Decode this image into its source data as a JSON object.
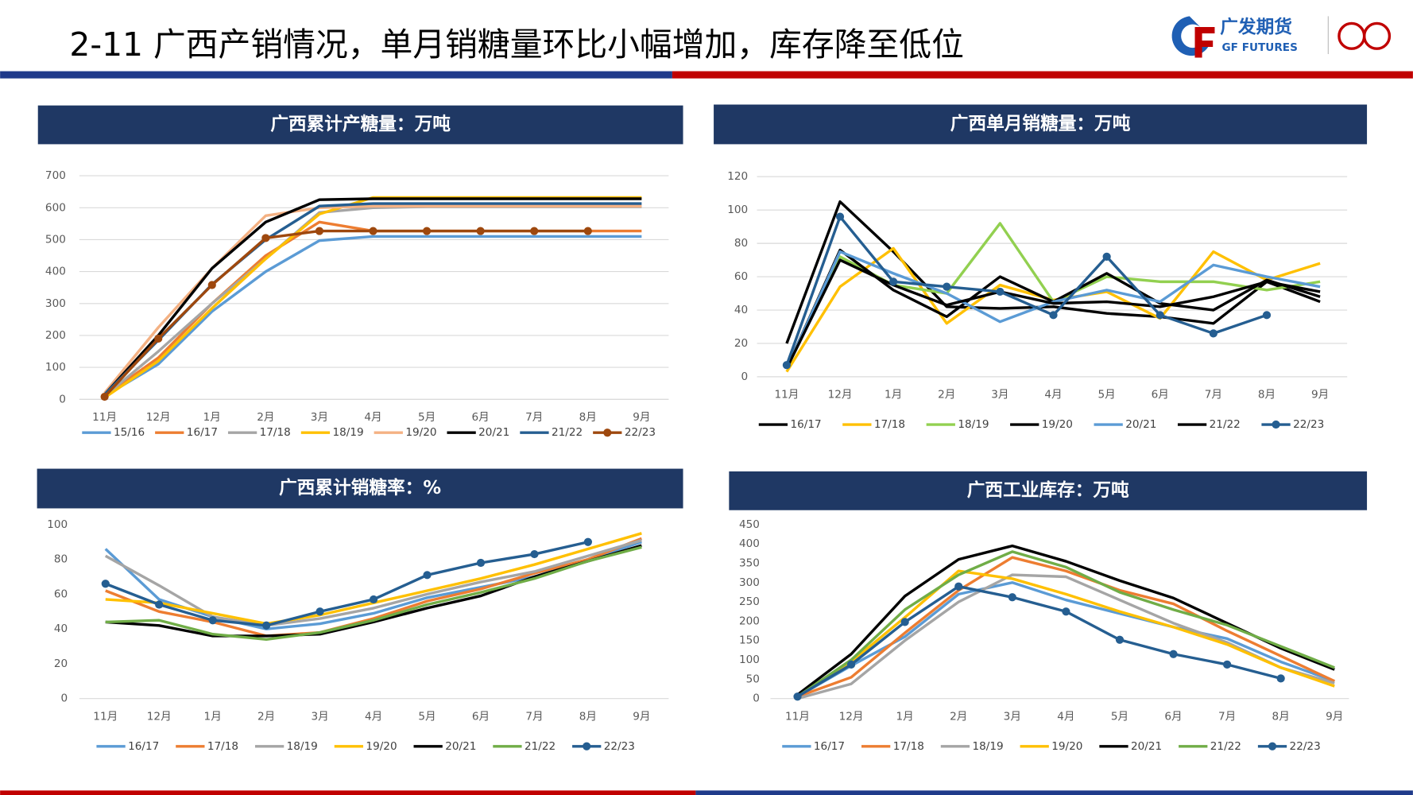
{
  "header": {
    "title": "2-11 广西产销情况，单月销糖量环比小幅增加，库存降至低位",
    "logo_cn": "广发期货",
    "logo_en": "GF FUTURES"
  },
  "chart_data": [
    {
      "type": "line",
      "title": "广西累计产糖量：万吨",
      "categories": [
        "11月",
        "12月",
        "1月",
        "2月",
        "3月",
        "4月",
        "5月",
        "6月",
        "7月",
        "8月",
        "9月"
      ],
      "ylim": [
        0,
        700
      ],
      "yticks": [
        0,
        100,
        200,
        300,
        400,
        500,
        600,
        700
      ],
      "grid": true,
      "series": [
        {
          "name": "15/16",
          "color": "#5b9bd5",
          "values": [
            10,
            110,
            275,
            400,
            497,
            510,
            510,
            510,
            510,
            510,
            510
          ]
        },
        {
          "name": "16/17",
          "color": "#ed7d31",
          "values": [
            10,
            130,
            300,
            450,
            555,
            527,
            527,
            527,
            527,
            527,
            527
          ]
        },
        {
          "name": "17/18",
          "color": "#a5a5a5",
          "values": [
            10,
            150,
            300,
            440,
            585,
            600,
            603,
            603,
            603,
            603,
            603
          ]
        },
        {
          "name": "18/19",
          "color": "#ffc000",
          "values": [
            5,
            120,
            285,
            440,
            580,
            632,
            632,
            632,
            632,
            632,
            632
          ]
        },
        {
          "name": "19/20",
          "color": "#f4b183",
          "values": [
            20,
            225,
            410,
            575,
            600,
            605,
            605,
            605,
            605,
            605,
            605
          ]
        },
        {
          "name": "20/21",
          "color": "#000000",
          "values": [
            15,
            200,
            410,
            555,
            625,
            628,
            628,
            628,
            628,
            628,
            628
          ]
        },
        {
          "name": "21/22",
          "color": "#255e91",
          "values": [
            15,
            185,
            360,
            500,
            605,
            613,
            613,
            613,
            613,
            613,
            613
          ]
        },
        {
          "name": "22/23",
          "color": "#9e480e",
          "markers": true,
          "values": [
            8,
            190,
            358,
            505,
            527,
            527,
            527,
            527,
            527,
            527,
            null
          ]
        }
      ]
    },
    {
      "type": "line",
      "title": "广西单月销糖量：万吨",
      "categories": [
        "11月",
        "12月",
        "1月",
        "2月",
        "3月",
        "4月",
        "5月",
        "6月",
        "7月",
        "8月",
        "9月"
      ],
      "ylim": [
        0,
        120
      ],
      "yticks": [
        0,
        20,
        40,
        60,
        80,
        100,
        120
      ],
      "grid": true,
      "series": [
        {
          "name": "16/17",
          "color": "#000000",
          "values": [
            20,
            105,
            75,
            42,
            41,
            42,
            38,
            36,
            32,
            57,
            45
          ]
        },
        {
          "name": "17/18",
          "color": "#ffc000",
          "values": [
            3,
            54,
            77,
            32,
            55,
            46,
            51,
            35,
            75,
            58,
            68
          ]
        },
        {
          "name": "18/19",
          "color": "#92d050",
          "values": [
            5,
            72,
            55,
            50,
            92,
            45,
            60,
            57,
            57,
            52,
            57
          ]
        },
        {
          "name": "19/20",
          "color": "#000000",
          "values": [
            5,
            76,
            52,
            36,
            60,
            45,
            62,
            44,
            40,
            58,
            48
          ]
        },
        {
          "name": "20/21",
          "color": "#5b9bd5",
          "values": [
            5,
            75,
            62,
            50,
            33,
            45,
            52,
            45,
            67,
            60,
            54
          ]
        },
        {
          "name": "21/22",
          "color": "#000000",
          "values": [
            5,
            70,
            55,
            43,
            51,
            44,
            45,
            42,
            48,
            57,
            51
          ]
        },
        {
          "name": "22/23",
          "color": "#255e91",
          "markers": true,
          "values": [
            7,
            96,
            57,
            54,
            51,
            37,
            72,
            37,
            26,
            37,
            null
          ]
        }
      ]
    },
    {
      "type": "line",
      "title": "广西累计销糖率：%",
      "categories": [
        "11月",
        "12月",
        "1月",
        "2月",
        "3月",
        "4月",
        "5月",
        "6月",
        "7月",
        "8月",
        "9月"
      ],
      "ylim": [
        0,
        100
      ],
      "yticks": [
        0,
        20,
        40,
        60,
        80,
        100
      ],
      "grid": false,
      "series": [
        {
          "name": "16/17",
          "color": "#5b9bd5",
          "values": [
            86,
            57,
            47,
            40,
            43,
            49,
            58,
            64,
            70,
            80,
            90
          ]
        },
        {
          "name": "17/18",
          "color": "#ed7d31",
          "values": [
            62,
            50,
            44,
            36,
            38,
            46,
            56,
            63,
            72,
            80,
            92
          ]
        },
        {
          "name": "18/19",
          "color": "#a5a5a5",
          "values": [
            82,
            65,
            47,
            42,
            46,
            52,
            60,
            67,
            73,
            82,
            91
          ]
        },
        {
          "name": "19/20",
          "color": "#ffc000",
          "values": [
            57,
            55,
            49,
            43,
            48,
            55,
            62,
            69,
            77,
            86,
            95
          ]
        },
        {
          "name": "20/21",
          "color": "#000000",
          "values": [
            44,
            42,
            36,
            36,
            37,
            44,
            52,
            59,
            70,
            79,
            88
          ]
        },
        {
          "name": "21/22",
          "color": "#70ad47",
          "values": [
            44,
            45,
            37,
            34,
            38,
            45,
            54,
            61,
            69,
            79,
            87
          ]
        },
        {
          "name": "22/23",
          "color": "#255e91",
          "markers": true,
          "values": [
            66,
            54,
            45,
            42,
            50,
            57,
            71,
            78,
            83,
            90,
            null
          ]
        }
      ]
    },
    {
      "type": "line",
      "title": "广西工业库存：万吨",
      "categories": [
        "11月",
        "12月",
        "1月",
        "2月",
        "3月",
        "4月",
        "5月",
        "6月",
        "7月",
        "8月",
        "9月"
      ],
      "ylim": [
        0,
        450
      ],
      "yticks": [
        0,
        50,
        100,
        150,
        200,
        250,
        300,
        350,
        400,
        450
      ],
      "grid": false,
      "series": [
        {
          "name": "16/17",
          "color": "#5b9bd5",
          "values": [
            5,
            85,
            160,
            270,
            300,
            255,
            220,
            185,
            155,
            95,
            45
          ]
        },
        {
          "name": "17/18",
          "color": "#ed7d31",
          "values": [
            5,
            55,
            170,
            280,
            365,
            330,
            280,
            245,
            175,
            110,
            45
          ]
        },
        {
          "name": "18/19",
          "color": "#a5a5a5",
          "values": [
            0,
            38,
            150,
            250,
            320,
            315,
            255,
            195,
            145,
            80,
            40
          ]
        },
        {
          "name": "19/20",
          "color": "#ffc000",
          "values": [
            5,
            95,
            210,
            330,
            310,
            270,
            225,
            185,
            140,
            80,
            32
          ]
        },
        {
          "name": "20/21",
          "color": "#000000",
          "values": [
            10,
            115,
            265,
            360,
            395,
            355,
            305,
            260,
            195,
            130,
            75
          ]
        },
        {
          "name": "21/22",
          "color": "#70ad47",
          "values": [
            5,
            100,
            230,
            320,
            380,
            340,
            275,
            230,
            190,
            135,
            80
          ]
        },
        {
          "name": "22/23",
          "color": "#255e91",
          "markers": true,
          "values": [
            5,
            88,
            198,
            290,
            262,
            225,
            152,
            115,
            88,
            52,
            null
          ]
        }
      ]
    }
  ]
}
